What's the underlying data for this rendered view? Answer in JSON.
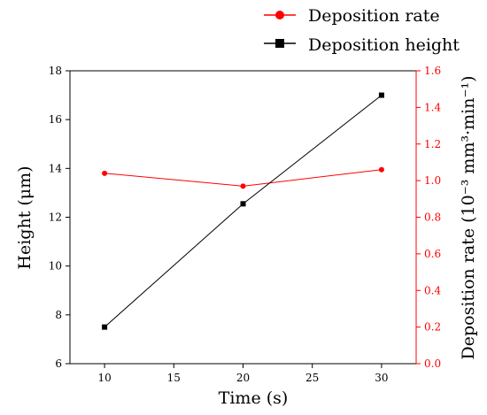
{
  "chart_data": {
    "type": "line",
    "x": [
      10,
      20,
      30
    ],
    "xlabel": "Time (s)",
    "xlim": [
      7.5,
      32.5
    ],
    "xticks": [
      "10",
      "15",
      "20",
      "25",
      "30"
    ],
    "ylabel_left": "Height (μm)",
    "ylim_left": [
      6,
      18
    ],
    "yticks_left": [
      "6",
      "8",
      "10",
      "12",
      "14",
      "16",
      "18"
    ],
    "ylabel_right": "Deposition rate (10⁻³ mm³·min⁻¹)",
    "ylim_right": [
      0.0,
      1.6
    ],
    "yticks_right": [
      "0.0",
      "0.2",
      "0.4",
      "0.6",
      "0.8",
      "1.0",
      "1.2",
      "1.4",
      "1.6"
    ],
    "grid": false,
    "legend_position": "top-right, outside plot",
    "series": [
      {
        "name": "Deposition rate",
        "axis": "right",
        "marker": "circle",
        "color": "#ff0000",
        "values": [
          1.04,
          0.97,
          1.06
        ]
      },
      {
        "name": "Deposition height",
        "axis": "left",
        "marker": "square",
        "color": "#000000",
        "values": [
          7.5,
          12.55,
          17.0
        ]
      }
    ]
  }
}
